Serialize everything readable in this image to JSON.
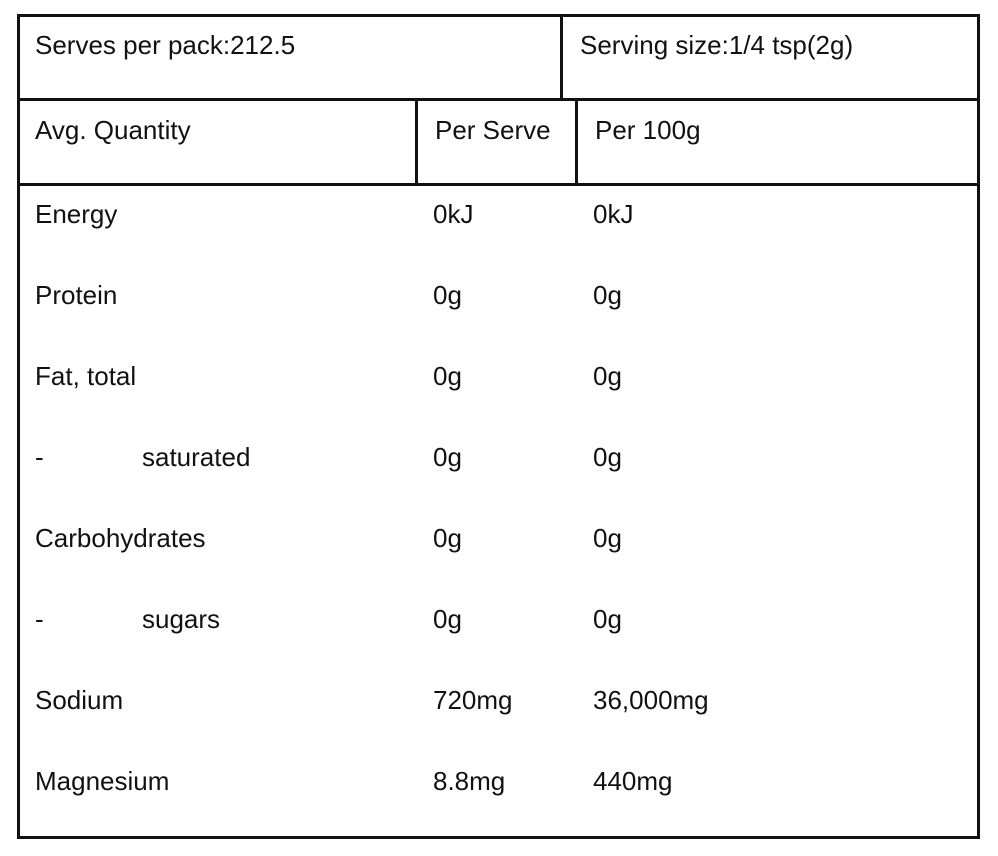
{
  "header": {
    "serves_per_pack": "Serves per pack:212.5",
    "serving_size": "Serving size:1/4 tsp(2g)"
  },
  "table": {
    "columns": [
      "Avg. Quantity",
      "Per Serve",
      "Per 100g"
    ],
    "rows": [
      {
        "name": "Energy",
        "per_serve": "0kJ",
        "per_100g": "0kJ"
      },
      {
        "name": "Protein",
        "per_serve": "0g",
        "per_100g": "0g"
      },
      {
        "name": "Fat, total",
        "per_serve": "0g",
        "per_100g": "0g"
      },
      {
        "prefix": "-",
        "name": "saturated",
        "per_serve": "0g",
        "per_100g": "0g"
      },
      {
        "name": "Carbohydrates",
        "per_serve": "0g",
        "per_100g": "0g"
      },
      {
        "prefix": "-",
        "name": "sugars",
        "per_serve": "0g",
        "per_100g": "0g"
      },
      {
        "name": "Sodium",
        "per_serve": "720mg",
        "per_100g": "36,000mg"
      },
      {
        "name": "Magnesium",
        "per_serve": "8.8mg",
        "per_100g": "440mg"
      }
    ]
  }
}
